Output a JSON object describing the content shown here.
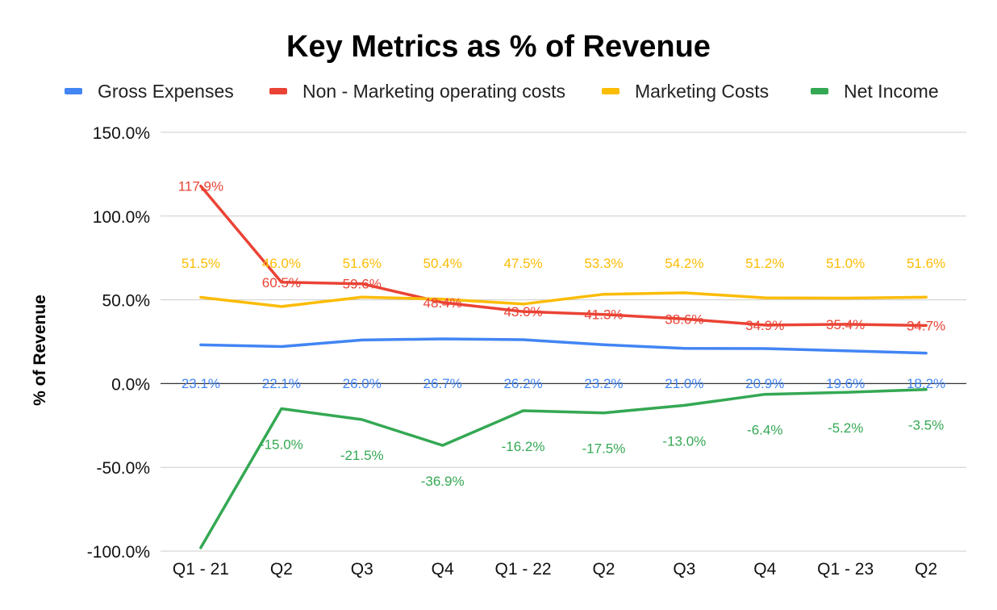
{
  "chart_data": {
    "type": "line",
    "title": "Key Metrics as % of Revenue",
    "ylabel": "% of Revenue",
    "xlabel": "",
    "categories": [
      "Q1 - 21",
      "Q2",
      "Q3",
      "Q4",
      "Q1 - 22",
      "Q2",
      "Q3",
      "Q4",
      "Q1 - 23",
      "Q2"
    ],
    "ylim": [
      -100,
      150
    ],
    "yticks": [
      150,
      100,
      50,
      0,
      -50,
      -100
    ],
    "ytick_labels": [
      "150.0%",
      "100.0%",
      "50.0%",
      "0.0%",
      "-50.0%",
      "-100.0%"
    ],
    "grid": true,
    "legend_position": "top",
    "series": [
      {
        "name": "Gross Expenses",
        "color": "#4285f4",
        "values": [
          23.1,
          22.1,
          26.0,
          26.7,
          26.2,
          23.2,
          21.0,
          20.9,
          19.6,
          18.2
        ],
        "labels": [
          "23.1%",
          "22.1%",
          "26.0%",
          "26.7%",
          "26.2%",
          "23.2%",
          "21.0%",
          "20.9%",
          "19.6%",
          "18.2%"
        ]
      },
      {
        "name": "Non - Marketing operating costs",
        "color": "#ea4335",
        "values": [
          117.9,
          60.5,
          59.6,
          48.4,
          43.0,
          41.3,
          38.6,
          34.9,
          35.4,
          34.7
        ],
        "labels": [
          "117.9%",
          "60.5%",
          "59.6%",
          "48.4%",
          "43.0%",
          "41.3%",
          "38.6%",
          "34.9%",
          "35.4%",
          "34.7%"
        ]
      },
      {
        "name": "Marketing Costs",
        "color": "#fbbc04",
        "values": [
          51.5,
          46.0,
          51.6,
          50.4,
          47.5,
          53.3,
          54.2,
          51.2,
          51.0,
          51.6
        ],
        "labels": [
          "51.5%",
          "46.0%",
          "51.6%",
          "50.4%",
          "47.5%",
          "53.3%",
          "54.2%",
          "51.2%",
          "51.0%",
          "51.6%"
        ]
      },
      {
        "name": "Net Income",
        "color": "#34a853",
        "values": [
          -98.0,
          -15.0,
          -21.5,
          -36.9,
          -16.2,
          -17.5,
          -13.0,
          -6.4,
          -5.2,
          -3.5
        ],
        "labels": [
          "",
          "-15.0%",
          "-21.5%",
          "-36.9%",
          "-16.2%",
          "-17.5%",
          "-13.0%",
          "-6.4%",
          "-5.2%",
          "-3.5%"
        ]
      }
    ]
  }
}
